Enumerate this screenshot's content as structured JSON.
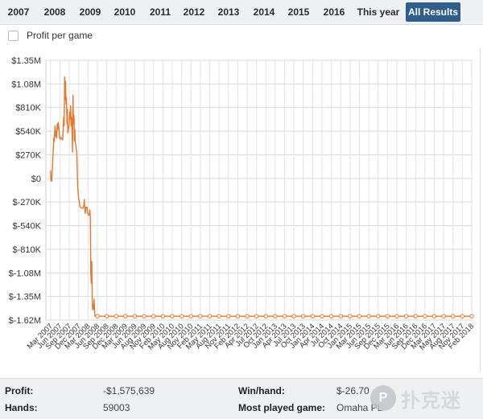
{
  "tabs": [
    {
      "label": "2007"
    },
    {
      "label": "2008"
    },
    {
      "label": "2009"
    },
    {
      "label": "2010"
    },
    {
      "label": "2011"
    },
    {
      "label": "2012"
    },
    {
      "label": "2013"
    },
    {
      "label": "2014"
    },
    {
      "label": "2015"
    },
    {
      "label": "2016"
    },
    {
      "label": "This year"
    },
    {
      "label": "All Results"
    }
  ],
  "active_tab": "All Results",
  "options": {
    "profit_per_game_label": "Profit per game",
    "profit_per_game_checked": false
  },
  "chart_data": {
    "type": "line",
    "ylim": [
      -1620000,
      1350000
    ],
    "y_ticks": [
      {
        "value": 1350000,
        "label": "$1.35M"
      },
      {
        "value": 1080000,
        "label": "$1.08M"
      },
      {
        "value": 810000,
        "label": "$810K"
      },
      {
        "value": 540000,
        "label": "$540K"
      },
      {
        "value": 270000,
        "label": "$270K"
      },
      {
        "value": 0,
        "label": "$0"
      },
      {
        "value": -270000,
        "label": "$-270K"
      },
      {
        "value": -540000,
        "label": "$-540K"
      },
      {
        "value": -810000,
        "label": "$-810K"
      },
      {
        "value": -1080000,
        "label": "$-1.08M"
      },
      {
        "value": -1350000,
        "label": "$-1.35M"
      },
      {
        "value": -1620000,
        "label": "$-1.62M"
      }
    ],
    "x_ticks": [
      "Mar 2007",
      "Jun 2007",
      "Sep 2007",
      "Dec 2007",
      "Mar 2008",
      "Jun 2008",
      "Sep 2008",
      "Dec 2008",
      "Mar 2009",
      "Jun 2009",
      "Aug 2009",
      "Nov 2009",
      "Feb 2010",
      "May 2010",
      "Aug 2010",
      "Nov 2010",
      "Feb 2011",
      "May 2011",
      "Aug 2011",
      "Nov 2011",
      "Feb 2012",
      "Apr 2012",
      "Jul 2012",
      "Oct 2012",
      "Jan 2013",
      "Apr 2013",
      "Jul 2013",
      "Oct 2013",
      "Jan 2014",
      "Apr 2014",
      "Jul 2014",
      "Oct 2014",
      "Jan 2015",
      "Mar 2015",
      "Jun 2015",
      "Sep 2015",
      "Dec 2015",
      "Mar 2016",
      "Jun 2016",
      "Sep 2016",
      "Dec 2016",
      "Mar 2017",
      "May 2017",
      "Aug 2017",
      "Nov 2017",
      "Feb 2018"
    ],
    "grid": true,
    "line_color": "#e8772e",
    "series": [
      {
        "points": [
          [
            0,
            90000
          ],
          [
            0.05,
            -30000
          ],
          [
            0.12,
            -30000
          ],
          [
            0.2,
            120000
          ],
          [
            0.28,
            320000
          ],
          [
            0.34,
            460000
          ],
          [
            0.4,
            420000
          ],
          [
            0.46,
            600000
          ],
          [
            0.52,
            480000
          ],
          [
            0.58,
            540000
          ],
          [
            0.64,
            460000
          ],
          [
            0.7,
            620000
          ],
          [
            0.76,
            560000
          ],
          [
            0.82,
            640000
          ],
          [
            0.9,
            560000
          ],
          [
            0.95,
            480000
          ],
          [
            1.0,
            450000
          ],
          [
            1.1,
            470000
          ],
          [
            1.2,
            450000
          ],
          [
            1.3,
            440000
          ],
          [
            1.4,
            700000
          ],
          [
            1.45,
            600000
          ],
          [
            1.5,
            1160000
          ],
          [
            1.55,
            900000
          ],
          [
            1.6,
            1110000
          ],
          [
            1.65,
            850000
          ],
          [
            1.7,
            920000
          ],
          [
            1.75,
            620000
          ],
          [
            1.8,
            790000
          ],
          [
            1.85,
            520000
          ],
          [
            1.9,
            560000
          ],
          [
            2.0,
            620000
          ],
          [
            2.05,
            760000
          ],
          [
            2.1,
            680000
          ],
          [
            2.15,
            830000
          ],
          [
            2.2,
            600000
          ],
          [
            2.25,
            700000
          ],
          [
            2.3,
            500000
          ],
          [
            2.35,
            300000
          ],
          [
            2.4,
            950000
          ],
          [
            2.45,
            620000
          ],
          [
            2.5,
            720000
          ],
          [
            2.55,
            430000
          ],
          [
            2.6,
            560000
          ],
          [
            2.65,
            400000
          ],
          [
            2.7,
            380000
          ],
          [
            2.8,
            300000
          ],
          [
            2.9,
            -100000
          ],
          [
            3.0,
            -230000
          ],
          [
            3.05,
            -250000
          ],
          [
            3.15,
            -330000
          ],
          [
            3.3,
            -340000
          ],
          [
            3.45,
            -340000
          ],
          [
            3.55,
            -320000
          ],
          [
            3.6,
            -240000
          ],
          [
            3.7,
            -400000
          ],
          [
            3.8,
            -330000
          ],
          [
            3.9,
            -330000
          ],
          [
            3.95,
            -400000
          ],
          [
            4.0,
            -400000
          ],
          [
            4.05,
            -420000
          ],
          [
            4.15,
            -420000
          ],
          [
            4.2,
            -360000
          ],
          [
            4.25,
            -440000
          ],
          [
            4.3,
            -1080000
          ],
          [
            4.35,
            -1200000
          ],
          [
            4.4,
            -950000
          ],
          [
            4.45,
            -1420000
          ],
          [
            4.5,
            -1500000
          ],
          [
            4.55,
            -1440000
          ],
          [
            4.6,
            -1500000
          ],
          [
            4.65,
            -1380000
          ],
          [
            4.7,
            -1500000
          ],
          [
            4.75,
            -1575639
          ],
          [
            5,
            -1575639
          ],
          [
            6,
            -1575639
          ],
          [
            7,
            -1575639
          ],
          [
            8,
            -1575639
          ],
          [
            9,
            -1575639
          ],
          [
            10,
            -1575639
          ],
          [
            11,
            -1575639
          ],
          [
            12,
            -1575639
          ],
          [
            13,
            -1575639
          ],
          [
            14,
            -1575639
          ],
          [
            15,
            -1575639
          ],
          [
            16,
            -1575639
          ],
          [
            17,
            -1575639
          ],
          [
            18,
            -1575639
          ],
          [
            19,
            -1575639
          ],
          [
            20,
            -1575639
          ],
          [
            21,
            -1575639
          ],
          [
            22,
            -1575639
          ],
          [
            23,
            -1575639
          ],
          [
            24,
            -1575639
          ],
          [
            25,
            -1575639
          ],
          [
            26,
            -1575639
          ],
          [
            27,
            -1575639
          ],
          [
            28,
            -1575639
          ],
          [
            29,
            -1575639
          ],
          [
            30,
            -1575639
          ],
          [
            31,
            -1575639
          ],
          [
            32,
            -1575639
          ],
          [
            33,
            -1575639
          ],
          [
            34,
            -1575639
          ],
          [
            35,
            -1575639
          ],
          [
            36,
            -1575639
          ],
          [
            37,
            -1575639
          ],
          [
            38,
            -1575639
          ],
          [
            39,
            -1575639
          ],
          [
            40,
            -1575639
          ],
          [
            41,
            -1575639
          ],
          [
            42,
            -1575639
          ],
          [
            43,
            -1575639
          ],
          [
            44,
            -1575639
          ],
          [
            45,
            -1575639
          ]
        ],
        "markers_from_index": 74
      }
    ]
  },
  "stats": {
    "profit_label": "Profit:",
    "profit_value": "-$1,575,639",
    "winhand_label": "Win/hand:",
    "winhand_value": "$-26.70",
    "hands_label": "Hands:",
    "hands_value": "59003",
    "mostplayed_label": "Most played game:",
    "mostplayed_value": "Omaha PL"
  },
  "watermark": {
    "logo_text": "P",
    "text": "扑克迷"
  }
}
